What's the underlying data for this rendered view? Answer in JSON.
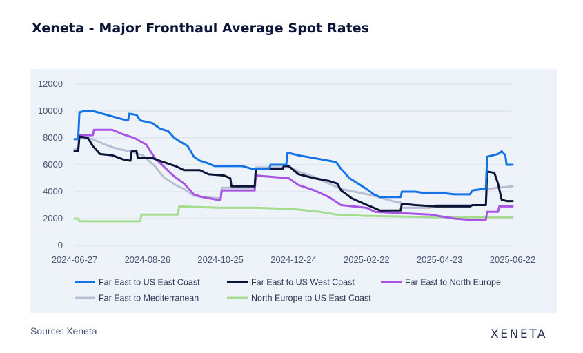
{
  "title": "Xeneta - Major Fronthaul Average Spot Rates",
  "source": "Source: Xeneta",
  "logo_text": "XENETA",
  "chart_data": {
    "type": "line",
    "title": "Xeneta - Major Fronthaul Average Spot Rates",
    "xlabel": "",
    "ylabel": "",
    "x_tick_labels": [
      "2024-06-27",
      "2024-08-26",
      "2024-10-25",
      "2024-12-24",
      "2025-02-22",
      "2025-04-23",
      "2025-06-22"
    ],
    "y_ticks": [
      0,
      2000,
      4000,
      6000,
      8000,
      10000,
      12000
    ],
    "ylim": [
      0,
      12000
    ],
    "xlim": [
      "2024-06-27",
      "2025-06-22"
    ],
    "grid": "horizontal",
    "legend_position": "bottom",
    "series": [
      {
        "name": "Far East to US East Coast",
        "color": "#1473e6",
        "points": [
          [
            "2024-06-27",
            7900
          ],
          [
            "2024-06-30",
            7900
          ],
          [
            "2024-07-01",
            9900
          ],
          [
            "2024-07-05",
            10000
          ],
          [
            "2024-07-12",
            10000
          ],
          [
            "2024-07-20",
            9800
          ],
          [
            "2024-07-28",
            9600
          ],
          [
            "2024-08-05",
            9400
          ],
          [
            "2024-08-10",
            9300
          ],
          [
            "2024-08-11",
            9800
          ],
          [
            "2024-08-17",
            9700
          ],
          [
            "2024-08-20",
            9300
          ],
          [
            "2024-08-30",
            9100
          ],
          [
            "2024-09-05",
            8700
          ],
          [
            "2024-09-12",
            8500
          ],
          [
            "2024-09-17",
            8000
          ],
          [
            "2024-09-22",
            7700
          ],
          [
            "2024-09-28",
            7400
          ],
          [
            "2024-10-03",
            6600
          ],
          [
            "2024-10-08",
            6300
          ],
          [
            "2024-10-15",
            6100
          ],
          [
            "2024-10-20",
            5900
          ],
          [
            "2024-11-01",
            5900
          ],
          [
            "2024-11-12",
            5900
          ],
          [
            "2024-11-20",
            5700
          ],
          [
            "2024-12-04",
            5700
          ],
          [
            "2024-12-05",
            6000
          ],
          [
            "2024-12-18",
            6000
          ],
          [
            "2024-12-19",
            6900
          ],
          [
            "2024-12-28",
            6700
          ],
          [
            "2025-01-10",
            6500
          ],
          [
            "2025-01-22",
            6300
          ],
          [
            "2025-01-28",
            6200
          ],
          [
            "2025-02-01",
            5700
          ],
          [
            "2025-02-08",
            5000
          ],
          [
            "2025-02-15",
            4600
          ],
          [
            "2025-02-22",
            4200
          ],
          [
            "2025-02-28",
            3800
          ],
          [
            "2025-03-05",
            3600
          ],
          [
            "2025-03-22",
            3600
          ],
          [
            "2025-03-23",
            4000
          ],
          [
            "2025-04-03",
            4000
          ],
          [
            "2025-04-10",
            3900
          ],
          [
            "2025-04-25",
            3900
          ],
          [
            "2025-05-05",
            3800
          ],
          [
            "2025-05-18",
            3800
          ],
          [
            "2025-05-20",
            4100
          ],
          [
            "2025-05-28",
            4200
          ],
          [
            "2025-05-31",
            4200
          ],
          [
            "2025-06-01",
            6600
          ],
          [
            "2025-06-10",
            6800
          ],
          [
            "2025-06-13",
            7000
          ],
          [
            "2025-06-16",
            6700
          ],
          [
            "2025-06-17",
            6000
          ],
          [
            "2025-06-22",
            6000
          ]
        ]
      },
      {
        "name": "Far East to US West Coast",
        "color": "#0b1537",
        "points": [
          [
            "2024-06-27",
            7000
          ],
          [
            "2024-06-30",
            7000
          ],
          [
            "2024-07-01",
            8100
          ],
          [
            "2024-07-08",
            8000
          ],
          [
            "2024-07-12",
            7400
          ],
          [
            "2024-07-18",
            6800
          ],
          [
            "2024-07-28",
            6700
          ],
          [
            "2024-08-06",
            6400
          ],
          [
            "2024-08-12",
            6300
          ],
          [
            "2024-08-13",
            7000
          ],
          [
            "2024-08-17",
            7000
          ],
          [
            "2024-08-18",
            6500
          ],
          [
            "2024-08-30",
            6500
          ],
          [
            "2024-09-08",
            6200
          ],
          [
            "2024-09-18",
            5900
          ],
          [
            "2024-09-25",
            5600
          ],
          [
            "2024-10-08",
            5600
          ],
          [
            "2024-10-15",
            5300
          ],
          [
            "2024-10-28",
            5200
          ],
          [
            "2024-11-02",
            5000
          ],
          [
            "2024-11-03",
            4400
          ],
          [
            "2024-11-22",
            4400
          ],
          [
            "2024-11-23",
            5700
          ],
          [
            "2024-12-15",
            5700
          ],
          [
            "2024-12-16",
            5900
          ],
          [
            "2024-12-20",
            5900
          ],
          [
            "2024-12-28",
            5300
          ],
          [
            "2025-01-10",
            5000
          ],
          [
            "2025-01-22",
            4800
          ],
          [
            "2025-01-29",
            4600
          ],
          [
            "2025-02-01",
            4100
          ],
          [
            "2025-02-10",
            3500
          ],
          [
            "2025-02-20",
            3100
          ],
          [
            "2025-02-28",
            2800
          ],
          [
            "2025-03-05",
            2600
          ],
          [
            "2025-03-22",
            2600
          ],
          [
            "2025-03-23",
            3100
          ],
          [
            "2025-04-03",
            3000
          ],
          [
            "2025-04-20",
            2900
          ],
          [
            "2025-05-18",
            2900
          ],
          [
            "2025-05-20",
            3000
          ],
          [
            "2025-05-31",
            3000
          ],
          [
            "2025-06-01",
            5500
          ],
          [
            "2025-06-07",
            5400
          ],
          [
            "2025-06-10",
            4600
          ],
          [
            "2025-06-13",
            3400
          ],
          [
            "2025-06-17",
            3300
          ],
          [
            "2025-06-22",
            3300
          ]
        ]
      },
      {
        "name": "Far East to North Europe",
        "color": "#a855e6",
        "points": [
          [
            "2024-06-27",
            7000
          ],
          [
            "2024-06-30",
            7000
          ],
          [
            "2024-07-01",
            8200
          ],
          [
            "2024-07-12",
            8200
          ],
          [
            "2024-07-13",
            8600
          ],
          [
            "2024-07-28",
            8600
          ],
          [
            "2024-08-05",
            8300
          ],
          [
            "2024-08-15",
            8000
          ],
          [
            "2024-08-25",
            7500
          ],
          [
            "2024-09-01",
            6500
          ],
          [
            "2024-09-08",
            5900
          ],
          [
            "2024-09-16",
            5200
          ],
          [
            "2024-09-25",
            4600
          ],
          [
            "2024-10-03",
            3800
          ],
          [
            "2024-10-10",
            3600
          ],
          [
            "2024-10-22",
            3400
          ],
          [
            "2024-10-25",
            3400
          ],
          [
            "2024-10-26",
            4100
          ],
          [
            "2024-11-22",
            4100
          ],
          [
            "2024-11-23",
            5200
          ],
          [
            "2024-12-20",
            5000
          ],
          [
            "2024-12-28",
            4500
          ],
          [
            "2025-01-10",
            4100
          ],
          [
            "2025-01-22",
            3600
          ],
          [
            "2025-02-01",
            3000
          ],
          [
            "2025-02-22",
            2800
          ],
          [
            "2025-03-01",
            2500
          ],
          [
            "2025-04-15",
            2300
          ],
          [
            "2025-05-05",
            2000
          ],
          [
            "2025-05-18",
            1900
          ],
          [
            "2025-05-31",
            1900
          ],
          [
            "2025-06-01",
            2500
          ],
          [
            "2025-06-10",
            2500
          ],
          [
            "2025-06-11",
            2900
          ],
          [
            "2025-06-22",
            2900
          ]
        ]
      },
      {
        "name": "Far East to Mediterranean",
        "color": "#b7bfd4",
        "points": [
          [
            "2024-06-27",
            7200
          ],
          [
            "2024-06-30",
            7200
          ],
          [
            "2024-07-01",
            8000
          ],
          [
            "2024-07-12",
            7900
          ],
          [
            "2024-07-22",
            7500
          ],
          [
            "2024-08-01",
            7200
          ],
          [
            "2024-08-12",
            7000
          ],
          [
            "2024-08-22",
            6700
          ],
          [
            "2024-09-01",
            5900
          ],
          [
            "2024-09-08",
            5100
          ],
          [
            "2024-09-18",
            4500
          ],
          [
            "2024-09-25",
            4200
          ],
          [
            "2024-10-03",
            3700
          ],
          [
            "2024-10-10",
            3600
          ],
          [
            "2024-10-25",
            3500
          ],
          [
            "2024-10-26",
            4300
          ],
          [
            "2024-11-22",
            4300
          ],
          [
            "2024-11-23",
            5800
          ],
          [
            "2024-12-22",
            5800
          ],
          [
            "2024-12-28",
            5500
          ],
          [
            "2025-01-10",
            5100
          ],
          [
            "2025-01-22",
            4600
          ],
          [
            "2025-02-01",
            4200
          ],
          [
            "2025-02-12",
            4000
          ],
          [
            "2025-02-28",
            3700
          ],
          [
            "2025-03-15",
            3300
          ],
          [
            "2025-03-22",
            3200
          ],
          [
            "2025-03-23",
            2800
          ],
          [
            "2025-04-15",
            2800
          ],
          [
            "2025-04-20",
            3000
          ],
          [
            "2025-05-31",
            3000
          ],
          [
            "2025-06-01",
            4200
          ],
          [
            "2025-06-10",
            4300
          ],
          [
            "2025-06-22",
            4400
          ]
        ]
      },
      {
        "name": "North Europe to US East Coast",
        "color": "#a6dc8e",
        "points": [
          [
            "2024-06-27",
            2000
          ],
          [
            "2024-06-30",
            2000
          ],
          [
            "2024-07-01",
            1800
          ],
          [
            "2024-08-20",
            1800
          ],
          [
            "2024-08-21",
            2300
          ],
          [
            "2024-09-20",
            2300
          ],
          [
            "2024-09-21",
            2900
          ],
          [
            "2024-10-25",
            2800
          ],
          [
            "2024-11-25",
            2800
          ],
          [
            "2024-12-24",
            2700
          ],
          [
            "2025-01-15",
            2500
          ],
          [
            "2025-01-28",
            2300
          ],
          [
            "2025-02-22",
            2200
          ],
          [
            "2025-04-23",
            2100
          ],
          [
            "2025-06-22",
            2100
          ]
        ]
      }
    ]
  }
}
